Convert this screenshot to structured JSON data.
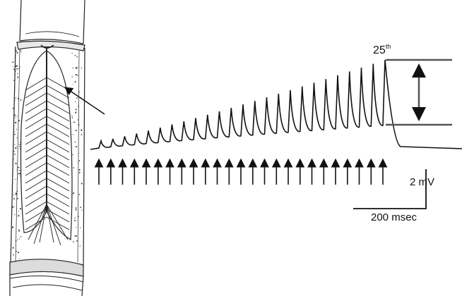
{
  "labels": {
    "pulse_number": "25",
    "pulse_suffix": "th",
    "voltage_scale": "2 mV",
    "time_scale": "200 msec"
  },
  "recording": {
    "stimulus_count": 25,
    "color": "#111111"
  }
}
